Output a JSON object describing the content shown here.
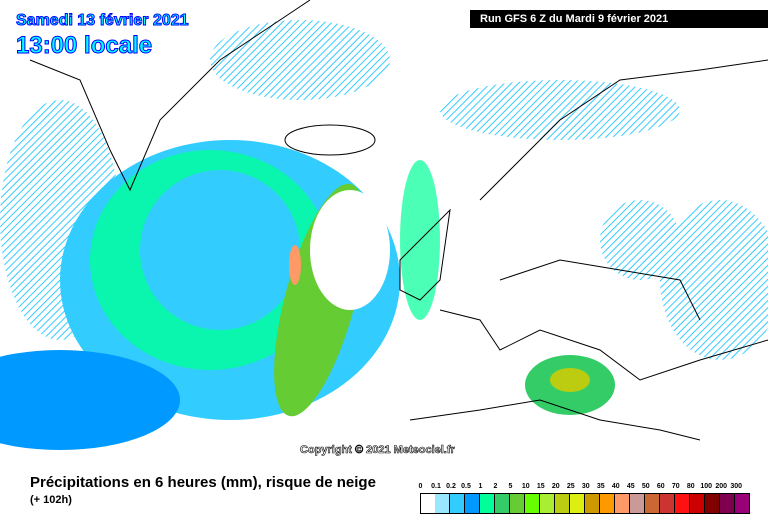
{
  "header": {
    "date": "Samedi 13 février 2021",
    "time": "13:00 locale",
    "run": "Run GFS 6 Z du Mardi 9 février 2021"
  },
  "copyright": "Copyright © 2021 Meteociel.fr",
  "footer": {
    "title": "Précipitations en 6 heures (mm), risque de neige",
    "lead": "(+ 102h)"
  },
  "legend": [
    {
      "label": "0",
      "color": "#ffffff"
    },
    {
      "label": "0.1",
      "color": "#99e6ff"
    },
    {
      "label": "0.2",
      "color": "#33ccff"
    },
    {
      "label": "0.5",
      "color": "#0099ff"
    },
    {
      "label": "1",
      "color": "#00ff99"
    },
    {
      "label": "2",
      "color": "#33cc66"
    },
    {
      "label": "5",
      "color": "#66cc33"
    },
    {
      "label": "10",
      "color": "#66ff00"
    },
    {
      "label": "15",
      "color": "#aaee33"
    },
    {
      "label": "20",
      "color": "#bbcc11"
    },
    {
      "label": "25",
      "color": "#ddee11"
    },
    {
      "label": "30",
      "color": "#cc9900"
    },
    {
      "label": "35",
      "color": "#ff9900"
    },
    {
      "label": "40",
      "color": "#ff9966"
    },
    {
      "label": "45",
      "color": "#cc9999"
    },
    {
      "label": "50",
      "color": "#cc6633"
    },
    {
      "label": "60",
      "color": "#cc3333"
    },
    {
      "label": "70",
      "color": "#ff1111"
    },
    {
      "label": "80",
      "color": "#cc0000"
    },
    {
      "label": "100",
      "color": "#800000"
    },
    {
      "label": "200",
      "color": "#800050"
    },
    {
      "label": "300",
      "color": "#990077"
    }
  ]
}
